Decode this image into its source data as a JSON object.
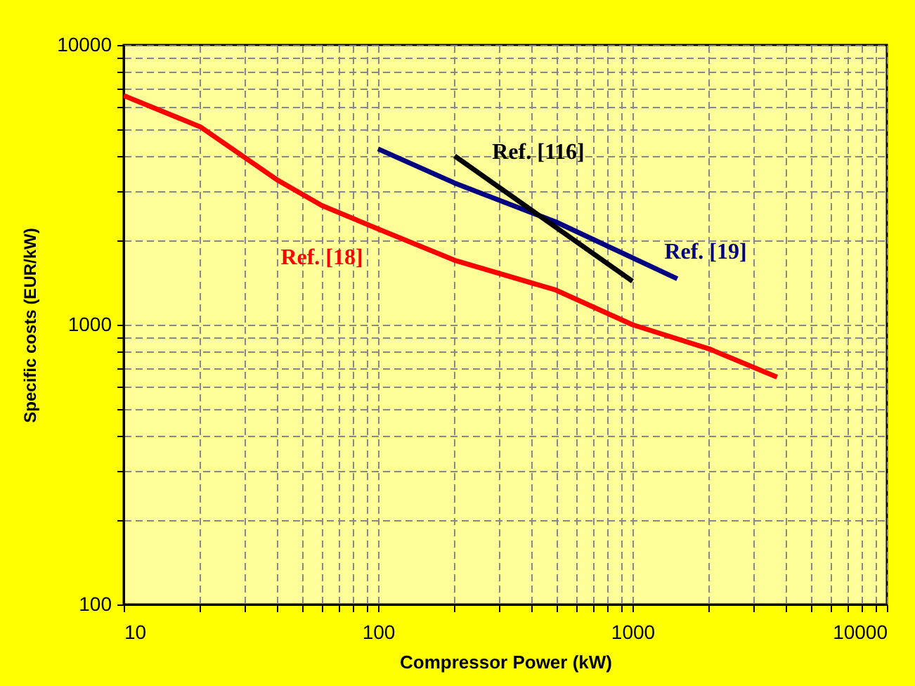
{
  "chart_data": {
    "type": "line",
    "xlabel": "Compressor Power (kW)",
    "ylabel": "Specific costs (EUR/kW)",
    "log": "xy",
    "grid": true,
    "xlim": [
      10,
      10000
    ],
    "ylim": [
      100,
      10000
    ],
    "xticks": [
      10,
      {
        "value": 20,
        "label": null
      },
      {
        "value": 30,
        "label": null
      },
      {
        "value": 40,
        "label": null
      },
      {
        "value": 50,
        "label": null
      },
      {
        "value": 60,
        "label": null
      },
      {
        "value": 70,
        "label": null
      },
      {
        "value": 80,
        "label": null
      },
      {
        "value": 90,
        "label": null
      },
      100,
      {
        "value": 200,
        "label": null
      },
      {
        "value": 300,
        "label": null
      },
      {
        "value": 400,
        "label": null
      },
      {
        "value": 500,
        "label": null
      },
      {
        "value": 600,
        "label": null
      },
      {
        "value": 700,
        "label": null
      },
      {
        "value": 800,
        "label": null
      },
      {
        "value": 900,
        "label": null
      },
      1000,
      {
        "value": 2000,
        "label": null
      },
      {
        "value": 3000,
        "label": null
      },
      {
        "value": 4000,
        "label": null
      },
      {
        "value": 5000,
        "label": null
      },
      {
        "value": 6000,
        "label": null
      },
      {
        "value": 7000,
        "label": null
      },
      {
        "value": 8000,
        "label": null
      },
      {
        "value": 9000,
        "label": null
      },
      10000
    ],
    "yticks": [
      100,
      {
        "value": 200,
        "label": null
      },
      {
        "value": 300,
        "label": null
      },
      {
        "value": 400,
        "label": null
      },
      {
        "value": 500,
        "label": null
      },
      {
        "value": 600,
        "label": null
      },
      {
        "value": 700,
        "label": null
      },
      {
        "value": 800,
        "label": null
      },
      {
        "value": 900,
        "label": null
      },
      1000,
      {
        "value": 2000,
        "label": null
      },
      {
        "value": 3000,
        "label": null
      },
      {
        "value": 4000,
        "label": null
      },
      {
        "value": 5000,
        "label": null
      },
      {
        "value": 6000,
        "label": null
      },
      {
        "value": 7000,
        "label": null
      },
      {
        "value": 8000,
        "label": null
      },
      {
        "value": 9000,
        "label": null
      },
      10000
    ],
    "series": [
      {
        "name": "Ref. [18]",
        "color": "#ff0000",
        "x": [
          10,
          20,
          40,
          60,
          100,
          200,
          500,
          1000,
          2000,
          3700
        ],
        "values": [
          6590,
          5100,
          3300,
          2670,
          2200,
          1700,
          1330,
          1000,
          820,
          650
        ]
      },
      {
        "name": "Ref. [19]",
        "color": "#000080",
        "x": [
          100,
          200,
          500,
          1500
        ],
        "values": [
          4250,
          3210,
          2330,
          1460
        ]
      },
      {
        "name": "Ref. [116]",
        "color": "#000000",
        "x": [
          200,
          1000
        ],
        "values": [
          4010,
          1430
        ]
      }
    ]
  }
}
